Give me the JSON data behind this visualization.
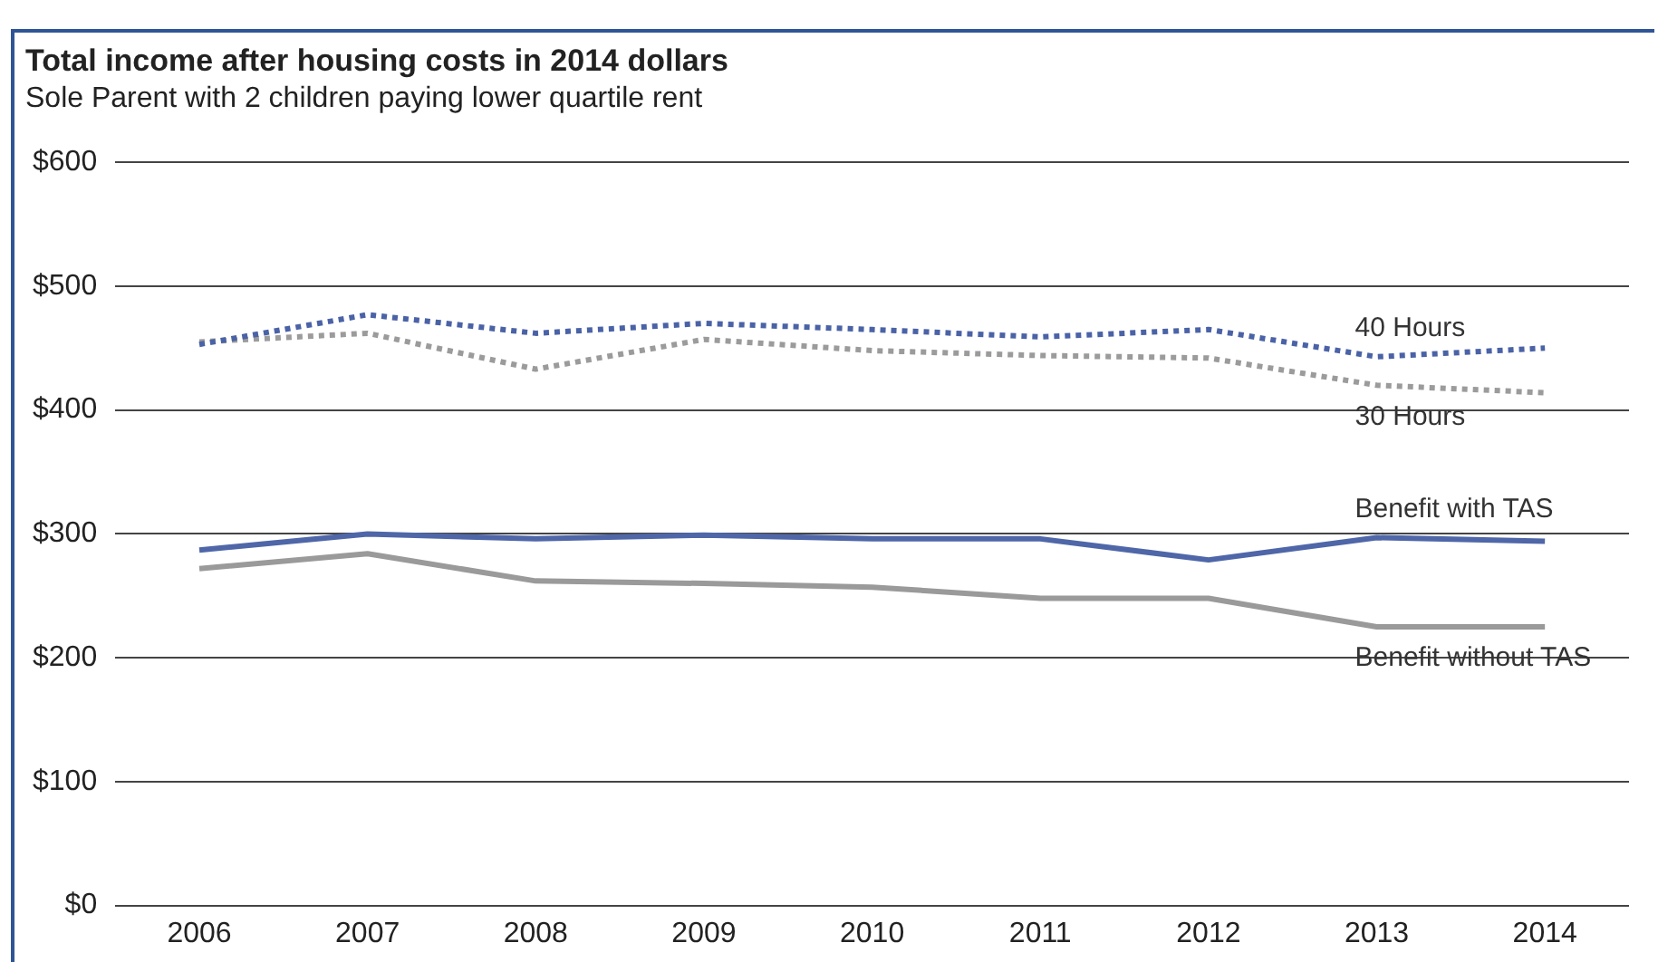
{
  "chart_data": {
    "type": "line",
    "title": "Total income after housing costs in 2014 dollars",
    "subtitle": "Sole Parent with 2 children paying lower quartile rent",
    "categories": [
      "2006",
      "2007",
      "2008",
      "2009",
      "2010",
      "2011",
      "2012",
      "2013",
      "2014"
    ],
    "series": [
      {
        "name": "40 Hours",
        "color": "#4a62a6",
        "line_style": "dotted",
        "values": [
          453,
          477,
          462,
          470,
          465,
          459,
          465,
          443,
          450
        ]
      },
      {
        "name": "30 Hours",
        "color": "#9b9b9b",
        "line_style": "dotted",
        "values": [
          455,
          462,
          433,
          457,
          448,
          444,
          442,
          420,
          414
        ]
      },
      {
        "name": "Benefit with TAS",
        "color": "#4f67a8",
        "line_style": "solid",
        "values": [
          287,
          300,
          296,
          299,
          296,
          296,
          279,
          297,
          294
        ]
      },
      {
        "name": "Benefit without TAS",
        "color": "#9a9a9a",
        "line_style": "solid",
        "values": [
          272,
          284,
          262,
          260,
          257,
          248,
          248,
          225,
          225
        ]
      }
    ],
    "ylim": [
      0,
      600
    ],
    "yticks": [
      {
        "value": 0,
        "label": "$0"
      },
      {
        "value": 100,
        "label": "$100"
      },
      {
        "value": 200,
        "label": "$200"
      },
      {
        "value": 300,
        "label": "$300"
      },
      {
        "value": 400,
        "label": "$400"
      },
      {
        "value": 500,
        "label": "$500"
      },
      {
        "value": 600,
        "label": "$600"
      }
    ],
    "grid": "y",
    "legend": false,
    "marker": "none"
  }
}
